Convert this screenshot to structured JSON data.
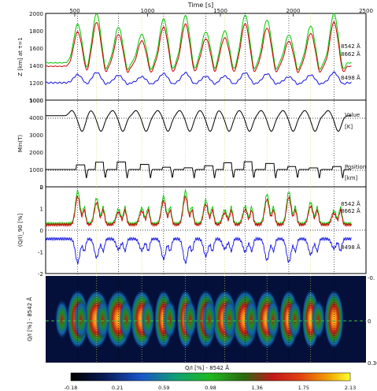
{
  "chart_data": [
    {
      "type": "line",
      "title": "Time [s]",
      "xlabel": "Time [s]",
      "ylabel": "Z [km] at τ=1",
      "x_ticks": [
        500,
        1000,
        1500,
        2000,
        2500
      ],
      "y_ticks": [
        1000,
        1200,
        1400,
        1600,
        1800,
        2000
      ],
      "ylim": [
        1000,
        2000
      ],
      "series": [
        {
          "name": "8542 Å",
          "color": "#00c800",
          "base": 1430,
          "peak": 2000
        },
        {
          "name": "8662 Å",
          "color": "#d00000",
          "base": 1390,
          "peak": 1900
        },
        {
          "name": "8498 Å",
          "color": "#1010e0",
          "base": 1200,
          "peak": 1320
        }
      ],
      "peak_times": [
        520,
        650,
        800,
        960,
        1110,
        1260,
        1400,
        1530,
        1670,
        1820,
        1970,
        2120,
        2280
      ]
    },
    {
      "type": "line",
      "ylabel": "Min(T)",
      "y_ticks": [
        0,
        1000,
        2000,
        3000,
        4000,
        5000
      ],
      "ylim": [
        0,
        5000
      ],
      "series": [
        {
          "name": "Value",
          "unit": "[K]",
          "color": "#000000",
          "level": 4000
        },
        {
          "name": "Position",
          "unit": "[km]",
          "color": "#000000",
          "level": 1000
        }
      ]
    },
    {
      "type": "line",
      "ylabel": "(Q/I)_90 [%]",
      "y_ticks": [
        -2,
        -1,
        0,
        1,
        2
      ],
      "ylim": [
        -2,
        2
      ],
      "series": [
        {
          "name": "8542 Å",
          "color": "#00c800"
        },
        {
          "name": "8662 Å",
          "color": "#d00000"
        },
        {
          "name": "8498 Å",
          "color": "#1010e0"
        }
      ]
    },
    {
      "type": "heatmap",
      "ylabel": "Q/I [%] - 8542 Å",
      "right_ticks": [
        "-0.",
        "0",
        "0.30"
      ],
      "colorbar": {
        "label": "Q/I [%] - 8542 Å",
        "ticks": [
          "-0.18",
          "0.21",
          "0.59",
          "0.98",
          "1.36",
          "1.75",
          "2.13"
        ]
      }
    }
  ],
  "vlines": [
    520,
    650,
    800,
    960,
    1110,
    1260,
    1400,
    1530,
    1670,
    1820,
    1970,
    2120,
    2280
  ]
}
